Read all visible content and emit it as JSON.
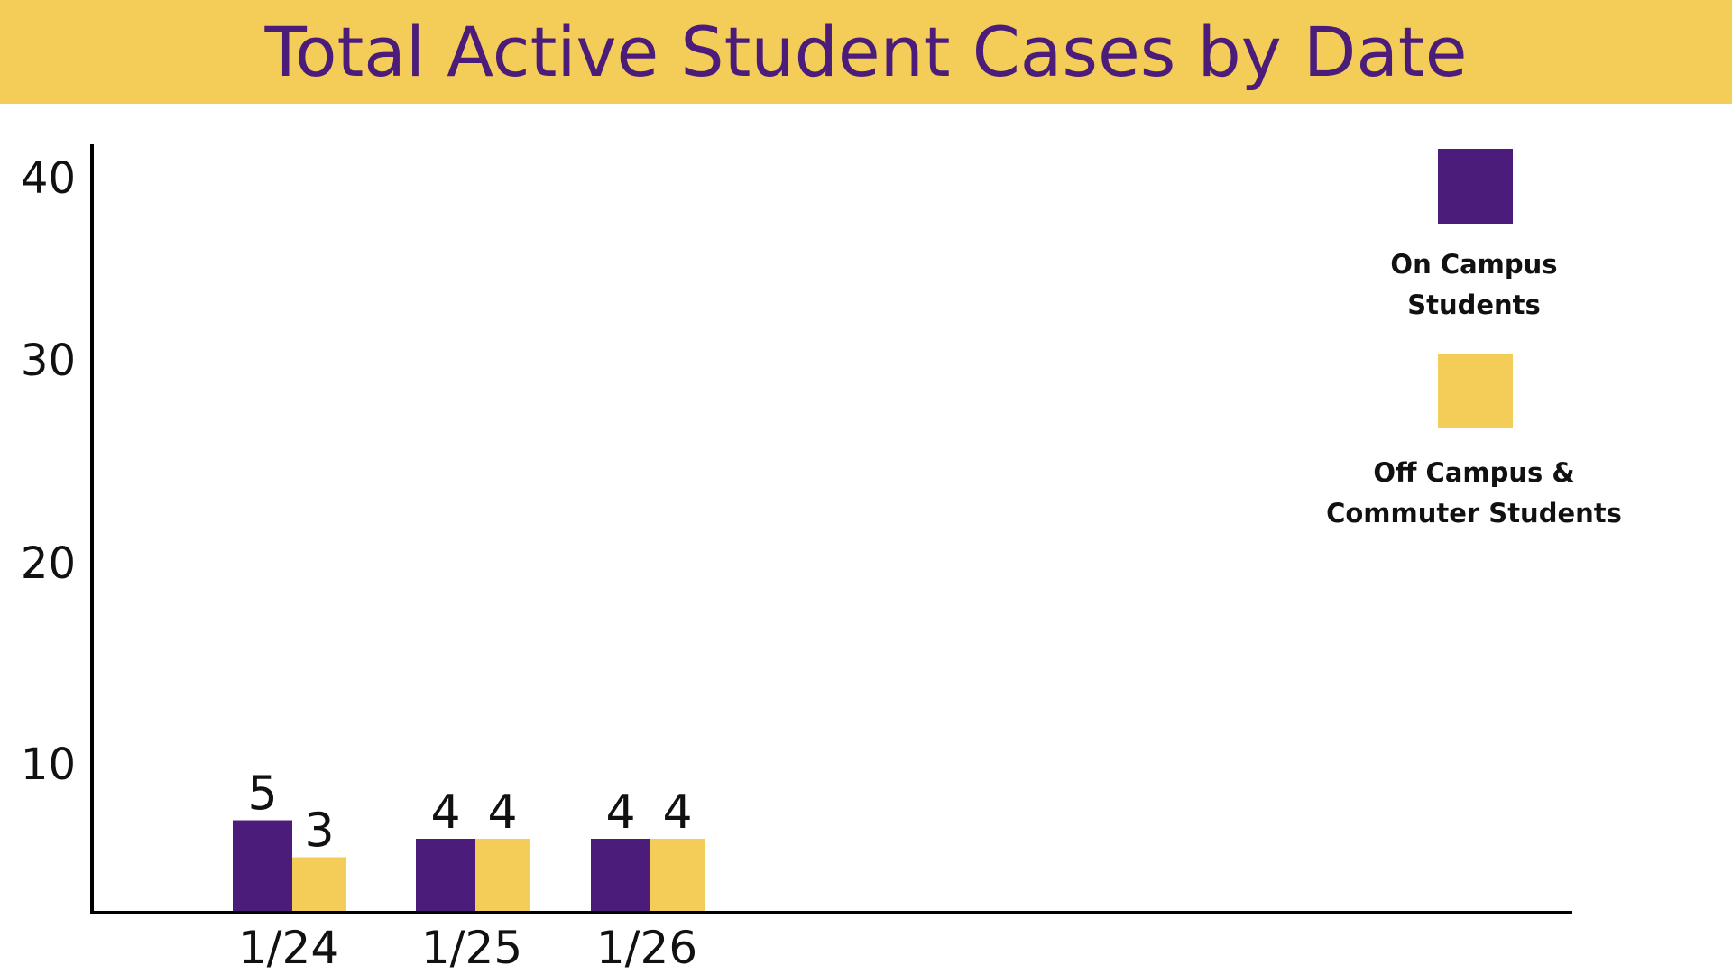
{
  "chart_data": {
    "type": "bar",
    "title": "Total Active Student Cases by Date",
    "categories": [
      "1/24",
      "1/25",
      "1/26"
    ],
    "series": [
      {
        "name": "On Campus Students",
        "legend_lines": [
          "On Campus",
          "Students"
        ],
        "values": [
          5,
          4,
          4
        ],
        "color": "#4b1c7a"
      },
      {
        "name": "Off Campus & Commuter Students",
        "legend_lines": [
          "Off Campus &",
          "Commuter Students"
        ],
        "values": [
          3,
          4,
          4
        ],
        "color": "#f4cd58"
      }
    ],
    "y_ticks": [
      "10",
      "20",
      "30",
      "40"
    ],
    "ylim": [
      0,
      40
    ],
    "grid": false,
    "legend_position": "top-right"
  },
  "colors": {
    "header_background": "#f4cd58",
    "title_text": "#4b1c7a",
    "axis": "#000000"
  }
}
